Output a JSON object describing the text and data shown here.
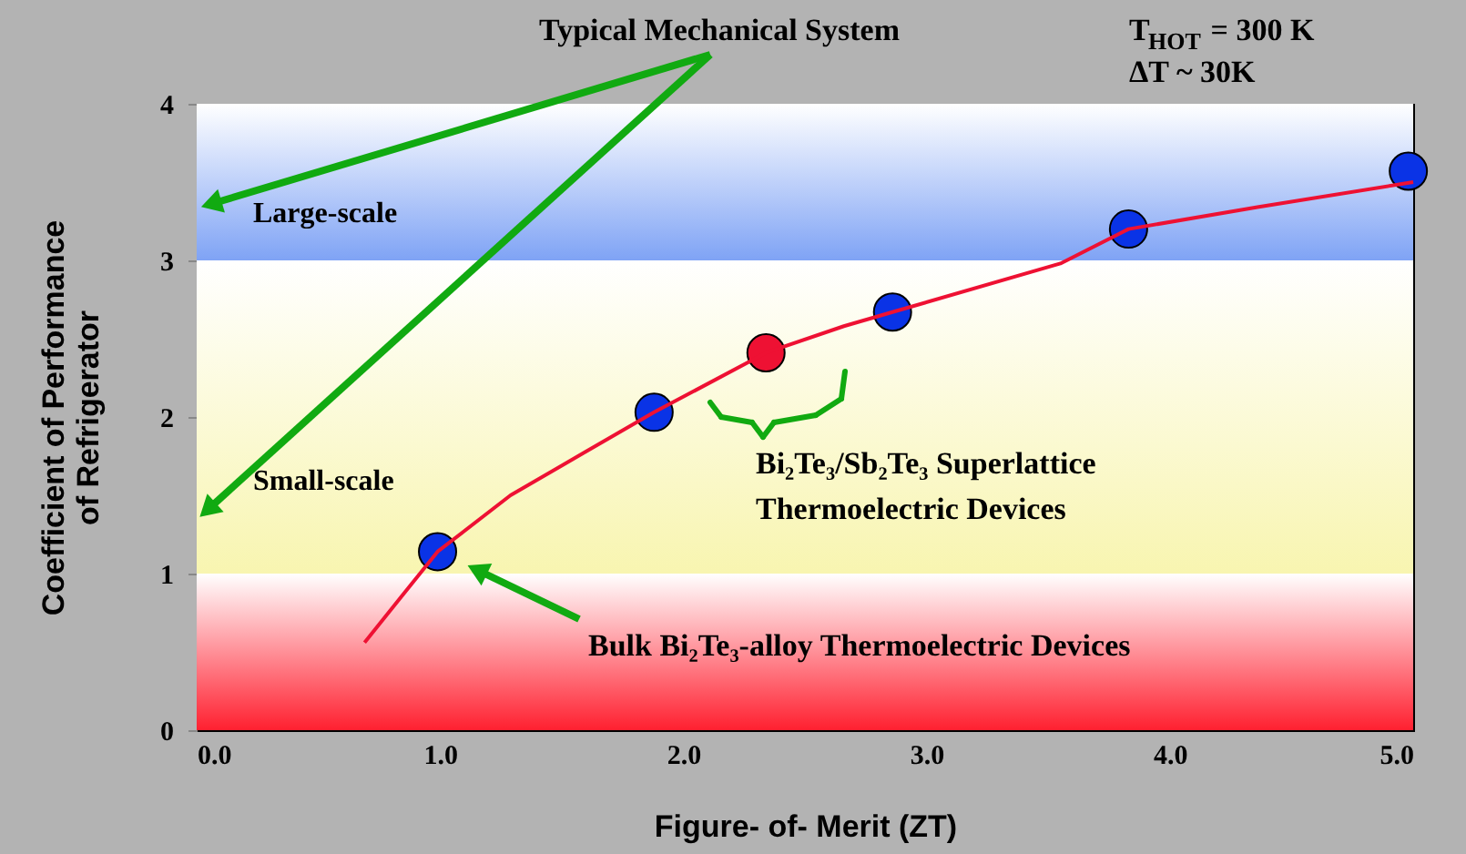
{
  "chart_data": {
    "type": "scatter",
    "xlabel": "Figure- of- Merit (ZT)",
    "ylabel": "Coefficient of Performance\nof Refrigerator",
    "xlim": [
      0,
      5
    ],
    "xticks": [
      {
        "value": 0,
        "label": "0.0"
      },
      {
        "value": 1,
        "label": "1.0"
      },
      {
        "value": 2,
        "label": "2.0"
      },
      {
        "value": 3,
        "label": "3.0"
      },
      {
        "value": 4,
        "label": "4.0"
      },
      {
        "value": 5,
        "label": "5.0"
      }
    ],
    "ylim": [
      0,
      4
    ],
    "yticks": [
      0,
      1,
      2,
      3,
      4
    ],
    "grid": false,
    "marker": "circle",
    "series": [
      {
        "type": "line",
        "marker": "none",
        "color": "#ee1133",
        "x": [
          0.69,
          0.84,
          0.99,
          1.29,
          1.59,
          1.88,
          2.34,
          2.66,
          2.86,
          3.55,
          3.83,
          4.36,
          5.0
        ],
        "values": [
          0.56,
          0.85,
          1.14,
          1.5,
          1.77,
          2.03,
          2.41,
          2.58,
          2.67,
          2.98,
          3.2,
          3.34,
          3.5
        ]
      },
      {
        "color": "#0a33e6",
        "x": [
          0.99,
          1.88,
          2.86,
          3.83,
          4.98
        ],
        "values": [
          1.14,
          2.03,
          2.67,
          3.2,
          3.57
        ]
      },
      {
        "color": "#ee1133",
        "x": [
          2.34
        ],
        "values": [
          2.41
        ]
      }
    ],
    "bands": [
      {
        "axis": "y",
        "from": 0,
        "to": 1,
        "color": "#ff2030"
      },
      {
        "axis": "y",
        "from": 1,
        "to": 3,
        "color": "#f8f5b0",
        "label": "Small-scale"
      },
      {
        "axis": "y",
        "from": 3,
        "to": 4,
        "color": "#7fa3f5",
        "label": "Large-scale"
      }
    ],
    "annotations": [
      "Typical Mechanical  System",
      "T$_{HOT}$ = 300 K",
      "ΔT ~ 30K",
      "Bi₂Te₃/Sb₂Te₃ Superlattice",
      "Thermoelectric Devices",
      "Bulk Bi₂Te₃-alloy Thermoelectric Devices"
    ]
  }
}
